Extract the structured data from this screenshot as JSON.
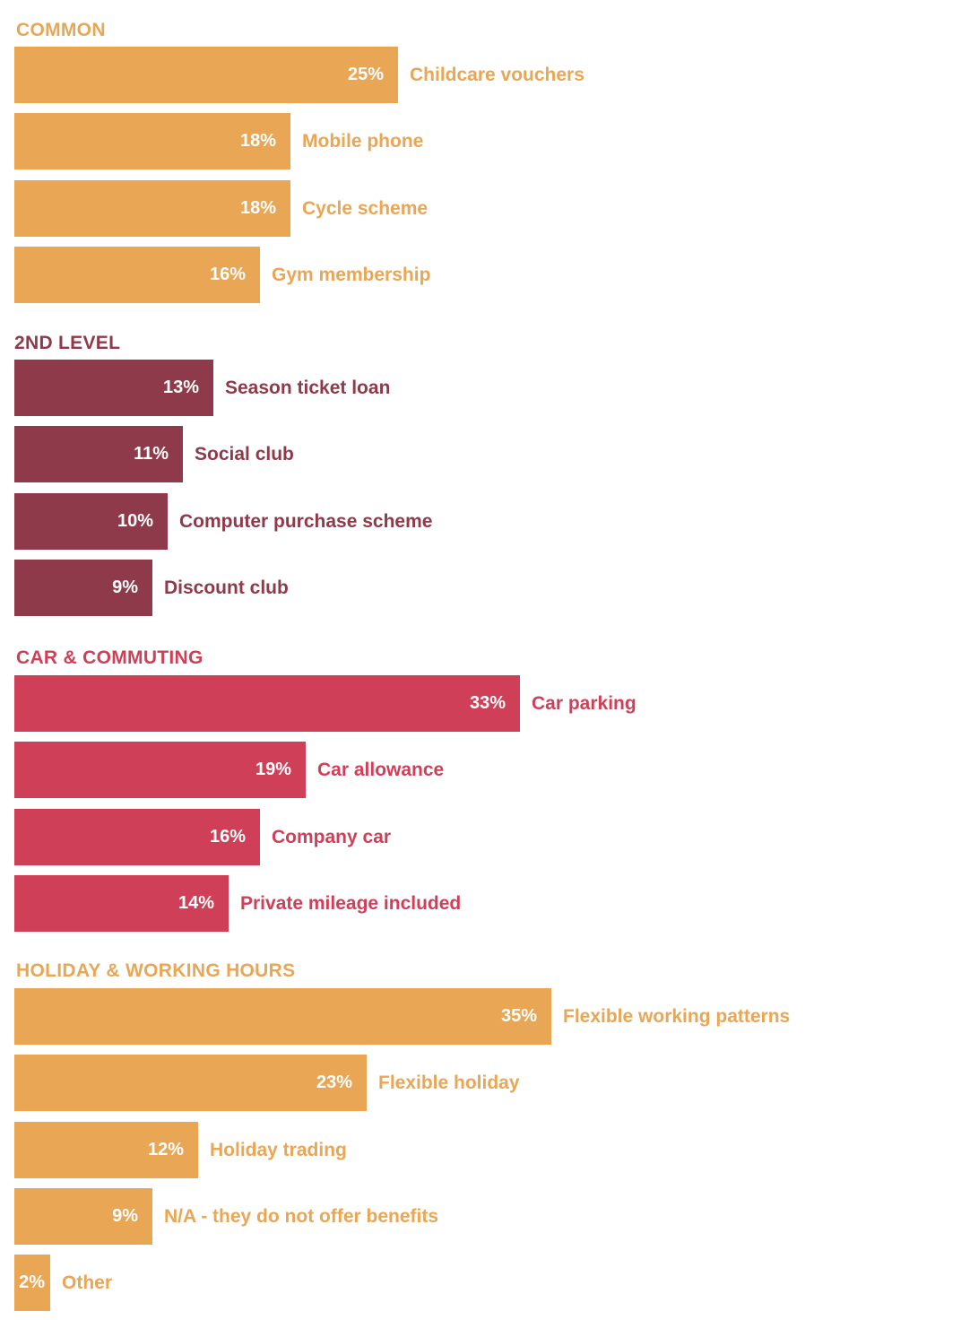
{
  "chart_data": {
    "type": "bar",
    "orientation": "horizontal",
    "unit": "%",
    "groups": [
      {
        "title": "COMMON",
        "color": "#E9A654",
        "items": [
          {
            "label": "Childcare vouchers",
            "value": 25,
            "value_label": "25%"
          },
          {
            "label": "Mobile phone",
            "value": 18,
            "value_label": "18%"
          },
          {
            "label": "Cycle scheme",
            "value": 18,
            "value_label": "18%"
          },
          {
            "label": "Gym membership",
            "value": 16,
            "value_label": "16%"
          }
        ]
      },
      {
        "title": "2ND LEVEL",
        "color": "#8E3A4A",
        "items": [
          {
            "label": "Season ticket loan",
            "value": 13,
            "value_label": "13%"
          },
          {
            "label": "Social club",
            "value": 11,
            "value_label": "11%"
          },
          {
            "label": "Computer purchase scheme",
            "value": 10,
            "value_label": "10%"
          },
          {
            "label": "Discount club",
            "value": 9,
            "value_label": "9%"
          }
        ]
      },
      {
        "title": "CAR & COMMUTING",
        "color": "#CF4058",
        "items": [
          {
            "label": "Car parking",
            "value": 33,
            "value_label": "33%"
          },
          {
            "label": "Car allowance",
            "value": 19,
            "value_label": "19%"
          },
          {
            "label": "Company car",
            "value": 16,
            "value_label": "16%"
          },
          {
            "label": "Private mileage included",
            "value": 14,
            "value_label": "14%"
          }
        ]
      },
      {
        "title": "HOLIDAY & WORKING HOURS",
        "color": "#E9A654",
        "items": [
          {
            "label": "Flexible working patterns",
            "value": 35,
            "value_label": "35%"
          },
          {
            "label": "Flexible holiday",
            "value": 23,
            "value_label": "23%"
          },
          {
            "label": "Holiday trading",
            "value": 12,
            "value_label": "12%"
          },
          {
            "label": "N/A - they do not offer benefits",
            "value": 9,
            "value_label": "9%"
          },
          {
            "label": "Other",
            "value": 2,
            "value_label": "2%"
          }
        ]
      }
    ]
  }
}
